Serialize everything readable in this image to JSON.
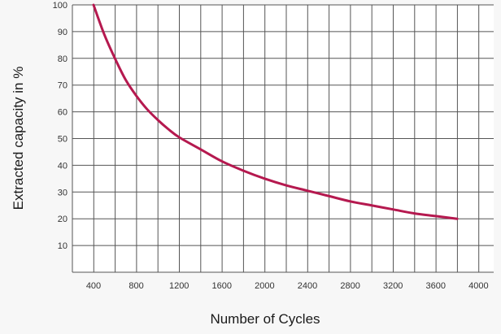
{
  "chart_data": {
    "type": "line",
    "title": "",
    "xlabel": "Number of Cycles",
    "ylabel": "Extracted capacity in %",
    "xlim": [
      200,
      4000
    ],
    "ylim": [
      0,
      100
    ],
    "x_ticks": [
      400,
      800,
      1200,
      1600,
      2000,
      2400,
      2800,
      3200,
      3600,
      4000
    ],
    "y_ticks": [
      10,
      20,
      30,
      40,
      50,
      60,
      70,
      80,
      90,
      100
    ],
    "grid": true,
    "legend": "none",
    "series": [
      {
        "color": "#b5194f",
        "x": [
          400,
          500,
          600,
          700,
          800,
          900,
          1000,
          1100,
          1200,
          1400,
          1600,
          1800,
          2000,
          2200,
          2400,
          2600,
          2800,
          3000,
          3200,
          3400,
          3600,
          3800
        ],
        "y": [
          100,
          89,
          80,
          72,
          66,
          61,
          57,
          53.5,
          50.5,
          46,
          41.5,
          38,
          35,
          32.5,
          30.5,
          28.5,
          26.5,
          25,
          23.5,
          22,
          21,
          20
        ]
      }
    ]
  }
}
